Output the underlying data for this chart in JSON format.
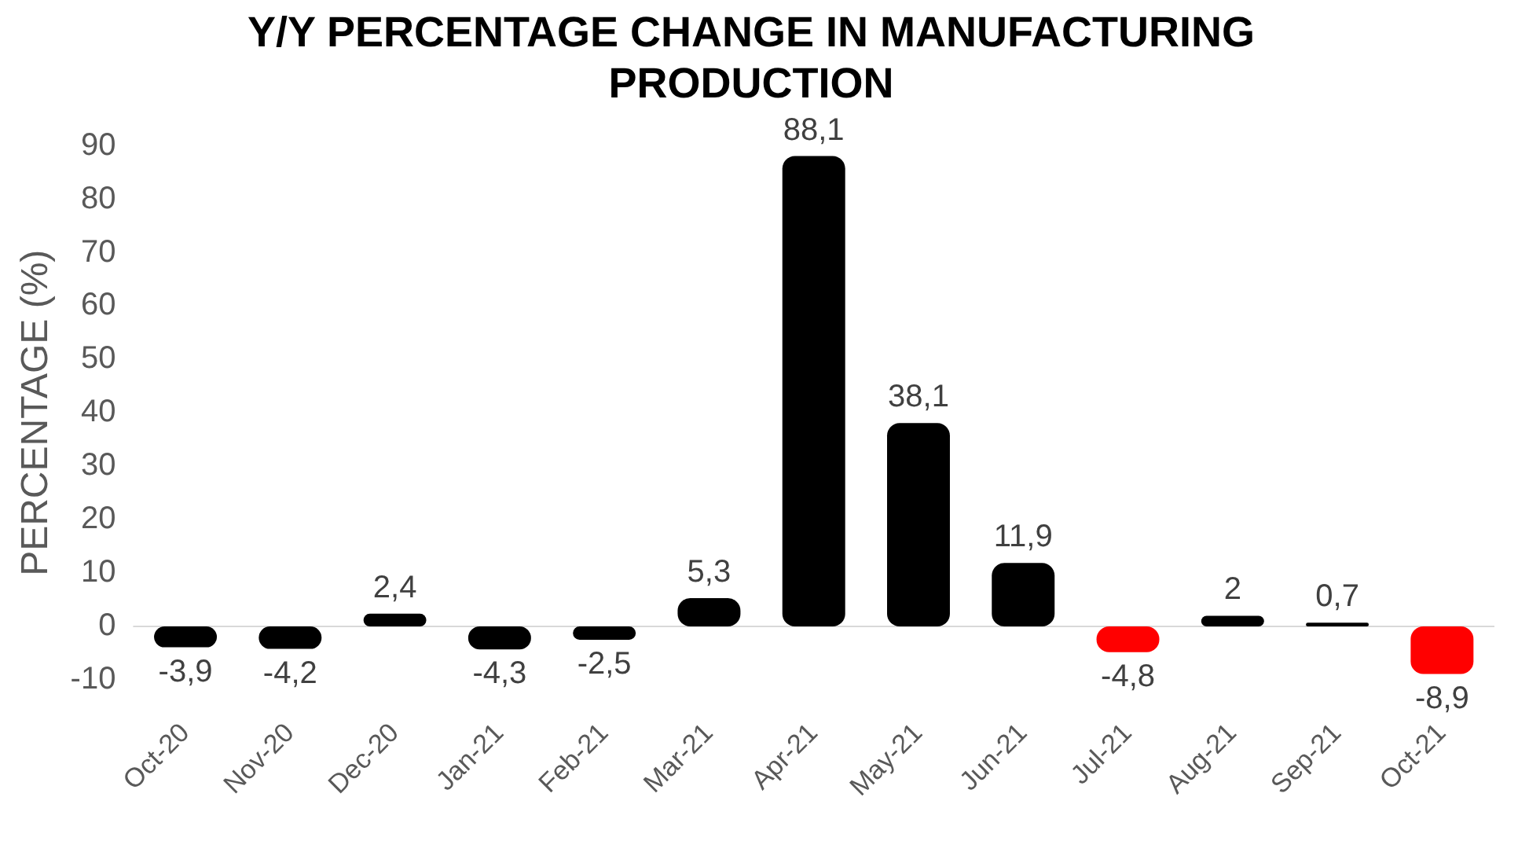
{
  "chart_data": {
    "type": "bar",
    "title": "Y/Y PERCENTAGE CHANGE IN MANUFACTURING PRODUCTION",
    "ylabel": "PERCENTAGE (%)",
    "categories": [
      "Oct-20",
      "Nov-20",
      "Dec-20",
      "Jan-21",
      "Feb-21",
      "Mar-21",
      "Apr-21",
      "May-21",
      "Jun-21",
      "Jul-21",
      "Aug-21",
      "Sep-21",
      "Oct-21"
    ],
    "values": [
      -3.9,
      -4.2,
      2.4,
      -4.3,
      -2.5,
      5.3,
      88.1,
      38.1,
      11.9,
      -4.8,
      2,
      0.7,
      -8.9
    ],
    "colors": [
      "#000000",
      "#000000",
      "#000000",
      "#000000",
      "#000000",
      "#000000",
      "#000000",
      "#000000",
      "#000000",
      "#ff0000",
      "#000000",
      "#000000",
      "#ff0000"
    ],
    "value_labels": [
      "-3,9",
      "-4,2",
      "2,4",
      "-4,3",
      "-2,5",
      "5,3",
      "88,1",
      "38,1",
      "11,9",
      "-4,8",
      "2",
      "0,7",
      "-8,9"
    ],
    "ylim": [
      -10,
      90
    ],
    "yticks": [
      -10,
      0,
      10,
      20,
      30,
      40,
      50,
      60,
      70,
      80,
      90
    ],
    "grid": false,
    "legend": false,
    "ref_lines": [
      {
        "axis": "y",
        "value": 0,
        "color": "#d9d9d9"
      }
    ]
  }
}
